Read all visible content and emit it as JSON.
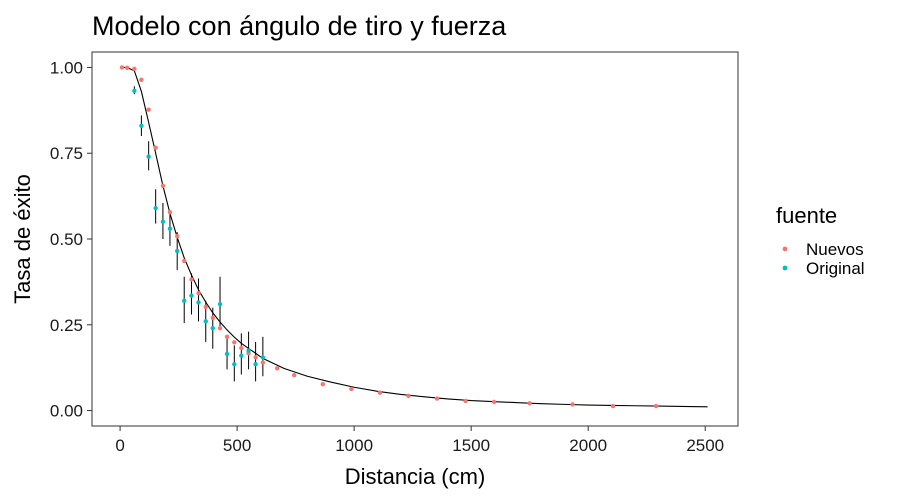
{
  "chart_data": {
    "type": "scatter",
    "title": "Modelo con ángulo de tiro y fuerza",
    "xlabel": "Distancia (cm)",
    "ylabel": "Tasa de éxito",
    "xlim": [
      -120,
      2640
    ],
    "ylim": [
      -0.045,
      1.045
    ],
    "xticks": [
      0,
      500,
      1000,
      1500,
      2000,
      2500
    ],
    "yticks": [
      0.0,
      0.25,
      0.5,
      0.75,
      1.0
    ],
    "xtick_labels": [
      "0",
      "500",
      "1000",
      "1500",
      "2000",
      "2500"
    ],
    "ytick_labels": [
      "0.00",
      "0.25",
      "0.50",
      "0.75",
      "1.00"
    ],
    "grid": false,
    "legend": {
      "title": "fuente",
      "placement": "right",
      "entries": [
        {
          "name": "Nuevos",
          "color": "#F8766D"
        },
        {
          "name": "Original",
          "color": "#00BFC4"
        }
      ]
    },
    "series": [
      {
        "name": "Nuevos",
        "color": "#F8766D",
        "points": [
          {
            "x": 8,
            "y": 1.0
          },
          {
            "x": 30,
            "y": 0.999
          },
          {
            "x": 61,
            "y": 0.996
          },
          {
            "x": 91,
            "y": 0.964
          },
          {
            "x": 122,
            "y": 0.877
          },
          {
            "x": 152,
            "y": 0.766
          },
          {
            "x": 183,
            "y": 0.655
          },
          {
            "x": 213,
            "y": 0.578
          },
          {
            "x": 244,
            "y": 0.508
          },
          {
            "x": 274,
            "y": 0.436
          },
          {
            "x": 305,
            "y": 0.382
          },
          {
            "x": 335,
            "y": 0.342
          },
          {
            "x": 366,
            "y": 0.302
          },
          {
            "x": 396,
            "y": 0.27
          },
          {
            "x": 427,
            "y": 0.24
          },
          {
            "x": 457,
            "y": 0.215
          },
          {
            "x": 488,
            "y": 0.199
          },
          {
            "x": 518,
            "y": 0.182
          },
          {
            "x": 549,
            "y": 0.167
          },
          {
            "x": 579,
            "y": 0.155
          },
          {
            "x": 610,
            "y": 0.14
          },
          {
            "x": 671,
            "y": 0.123
          },
          {
            "x": 744,
            "y": 0.103
          },
          {
            "x": 866,
            "y": 0.077
          },
          {
            "x": 988,
            "y": 0.063
          },
          {
            "x": 1110,
            "y": 0.052
          },
          {
            "x": 1232,
            "y": 0.043
          },
          {
            "x": 1354,
            "y": 0.035
          },
          {
            "x": 1476,
            "y": 0.028
          },
          {
            "x": 1598,
            "y": 0.025
          },
          {
            "x": 1750,
            "y": 0.021
          },
          {
            "x": 1933,
            "y": 0.018
          },
          {
            "x": 2106,
            "y": 0.013
          },
          {
            "x": 2290,
            "y": 0.013
          }
        ]
      },
      {
        "name": "Original",
        "color": "#00BFC4",
        "points": [
          {
            "x": 61,
            "y": 0.932,
            "lo": 0.922,
            "hi": 0.945
          },
          {
            "x": 91,
            "y": 0.83,
            "lo": 0.8,
            "hi": 0.86
          },
          {
            "x": 122,
            "y": 0.74,
            "lo": 0.7,
            "hi": 0.785
          },
          {
            "x": 152,
            "y": 0.59,
            "lo": 0.545,
            "hi": 0.645
          },
          {
            "x": 183,
            "y": 0.55,
            "lo": 0.5,
            "hi": 0.605
          },
          {
            "x": 213,
            "y": 0.53,
            "lo": 0.48,
            "hi": 0.58
          },
          {
            "x": 244,
            "y": 0.465,
            "lo": 0.41,
            "hi": 0.52
          },
          {
            "x": 274,
            "y": 0.32,
            "lo": 0.255,
            "hi": 0.39
          },
          {
            "x": 305,
            "y": 0.335,
            "lo": 0.28,
            "hi": 0.4
          },
          {
            "x": 335,
            "y": 0.315,
            "lo": 0.26,
            "hi": 0.385
          },
          {
            "x": 366,
            "y": 0.26,
            "lo": 0.2,
            "hi": 0.32
          },
          {
            "x": 396,
            "y": 0.24,
            "lo": 0.18,
            "hi": 0.3
          },
          {
            "x": 427,
            "y": 0.31,
            "lo": 0.235,
            "hi": 0.39
          },
          {
            "x": 457,
            "y": 0.165,
            "lo": 0.12,
            "hi": 0.215
          },
          {
            "x": 488,
            "y": 0.135,
            "lo": 0.085,
            "hi": 0.19
          },
          {
            "x": 518,
            "y": 0.16,
            "lo": 0.105,
            "hi": 0.225
          },
          {
            "x": 549,
            "y": 0.175,
            "lo": 0.12,
            "hi": 0.23
          },
          {
            "x": 579,
            "y": 0.135,
            "lo": 0.085,
            "hi": 0.2
          },
          {
            "x": 610,
            "y": 0.155,
            "lo": 0.1,
            "hi": 0.215
          }
        ]
      }
    ],
    "model_curve": {
      "color": "#000000",
      "points": [
        {
          "x": 0,
          "y": 1.0
        },
        {
          "x": 30,
          "y": 1.0
        },
        {
          "x": 61,
          "y": 0.99
        },
        {
          "x": 91,
          "y": 0.93
        },
        {
          "x": 122,
          "y": 0.84
        },
        {
          "x": 152,
          "y": 0.75
        },
        {
          "x": 183,
          "y": 0.655
        },
        {
          "x": 213,
          "y": 0.575
        },
        {
          "x": 244,
          "y": 0.505
        },
        {
          "x": 274,
          "y": 0.445
        },
        {
          "x": 305,
          "y": 0.395
        },
        {
          "x": 335,
          "y": 0.352
        },
        {
          "x": 366,
          "y": 0.316
        },
        {
          "x": 396,
          "y": 0.285
        },
        {
          "x": 427,
          "y": 0.258
        },
        {
          "x": 457,
          "y": 0.235
        },
        {
          "x": 488,
          "y": 0.214
        },
        {
          "x": 518,
          "y": 0.196
        },
        {
          "x": 549,
          "y": 0.181
        },
        {
          "x": 579,
          "y": 0.167
        },
        {
          "x": 610,
          "y": 0.152
        },
        {
          "x": 700,
          "y": 0.123
        },
        {
          "x": 800,
          "y": 0.1
        },
        {
          "x": 900,
          "y": 0.083
        },
        {
          "x": 1000,
          "y": 0.068
        },
        {
          "x": 1100,
          "y": 0.056
        },
        {
          "x": 1200,
          "y": 0.047
        },
        {
          "x": 1300,
          "y": 0.04
        },
        {
          "x": 1400,
          "y": 0.034
        },
        {
          "x": 1500,
          "y": 0.029
        },
        {
          "x": 1600,
          "y": 0.026
        },
        {
          "x": 1700,
          "y": 0.023
        },
        {
          "x": 1800,
          "y": 0.02
        },
        {
          "x": 1900,
          "y": 0.018
        },
        {
          "x": 2000,
          "y": 0.016
        },
        {
          "x": 2100,
          "y": 0.015
        },
        {
          "x": 2200,
          "y": 0.014
        },
        {
          "x": 2300,
          "y": 0.013
        },
        {
          "x": 2400,
          "y": 0.012
        },
        {
          "x": 2510,
          "y": 0.011
        }
      ]
    }
  }
}
